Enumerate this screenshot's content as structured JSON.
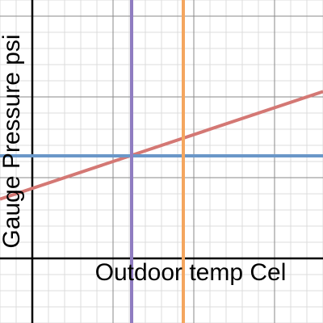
{
  "chart_data": {
    "type": "line",
    "xlabel": "Outdoor temp Cel",
    "ylabel": "Gauge Pressure psi",
    "xlim": [
      -4,
      36
    ],
    "ylim": [
      -8,
      32
    ],
    "grid": true,
    "grid_minor_step": 2,
    "grid_major_step": 10,
    "series": [
      {
        "kind": "line",
        "slope": 0.333,
        "intercept": 8.67,
        "color": "#d47874"
      },
      {
        "kind": "hline",
        "y": 12.7,
        "color": "#6a97c8"
      },
      {
        "kind": "vline",
        "x": 12.3,
        "color": "#8f7cc1"
      },
      {
        "kind": "vline",
        "x": 18.7,
        "color": "#f4a65f"
      }
    ]
  }
}
